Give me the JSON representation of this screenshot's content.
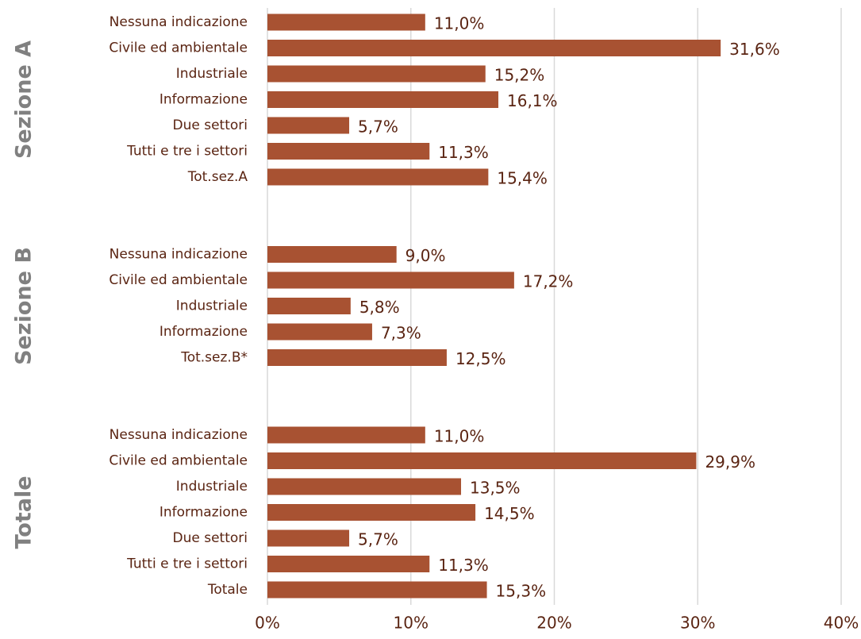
{
  "chart_data": {
    "type": "bar",
    "orientation": "horizontal",
    "color": "#a85232",
    "grid": true,
    "xlim": [
      0,
      40
    ],
    "xticks": [
      {
        "value": 0,
        "label": "0%"
      },
      {
        "value": 10,
        "label": "10%"
      },
      {
        "value": 20,
        "label": "20%"
      },
      {
        "value": 30,
        "label": "30%"
      },
      {
        "value": 40,
        "label": "40%"
      }
    ],
    "groups": [
      {
        "name": "Sezione A",
        "categories": [
          "Nessuna indicazione",
          "Civile ed ambientale",
          "Industriale",
          "Informazione",
          "Due settori",
          "Tutti e tre i settori",
          "Tot.sez.A"
        ],
        "values": [
          11.0,
          31.6,
          15.2,
          16.1,
          5.7,
          11.3,
          15.4
        ],
        "value_labels": [
          "11,0%",
          "31,6%",
          "15,2%",
          "16,1%",
          "5,7%",
          "11,3%",
          "15,4%"
        ]
      },
      {
        "name": "Sezione B",
        "categories": [
          "Nessuna indicazione",
          "Civile ed ambientale",
          "Industriale",
          "Informazione",
          "Tot.sez.B*"
        ],
        "values": [
          9.0,
          17.2,
          5.8,
          7.3,
          12.5
        ],
        "value_labels": [
          "9,0%",
          "17,2%",
          "5,8%",
          "7,3%",
          "12,5%"
        ]
      },
      {
        "name": "Totale",
        "categories": [
          "Nessuna indicazione",
          "Civile ed ambientale",
          "Industriale",
          "Informazione",
          "Due settori",
          "Tutti e tre i settori",
          "Totale"
        ],
        "values": [
          11.0,
          29.9,
          13.5,
          14.5,
          5.7,
          11.3,
          15.3
        ],
        "value_labels": [
          "11,0%",
          "29,9%",
          "13,5%",
          "14,5%",
          "5,7%",
          "11,3%",
          "15,3%"
        ]
      }
    ]
  }
}
